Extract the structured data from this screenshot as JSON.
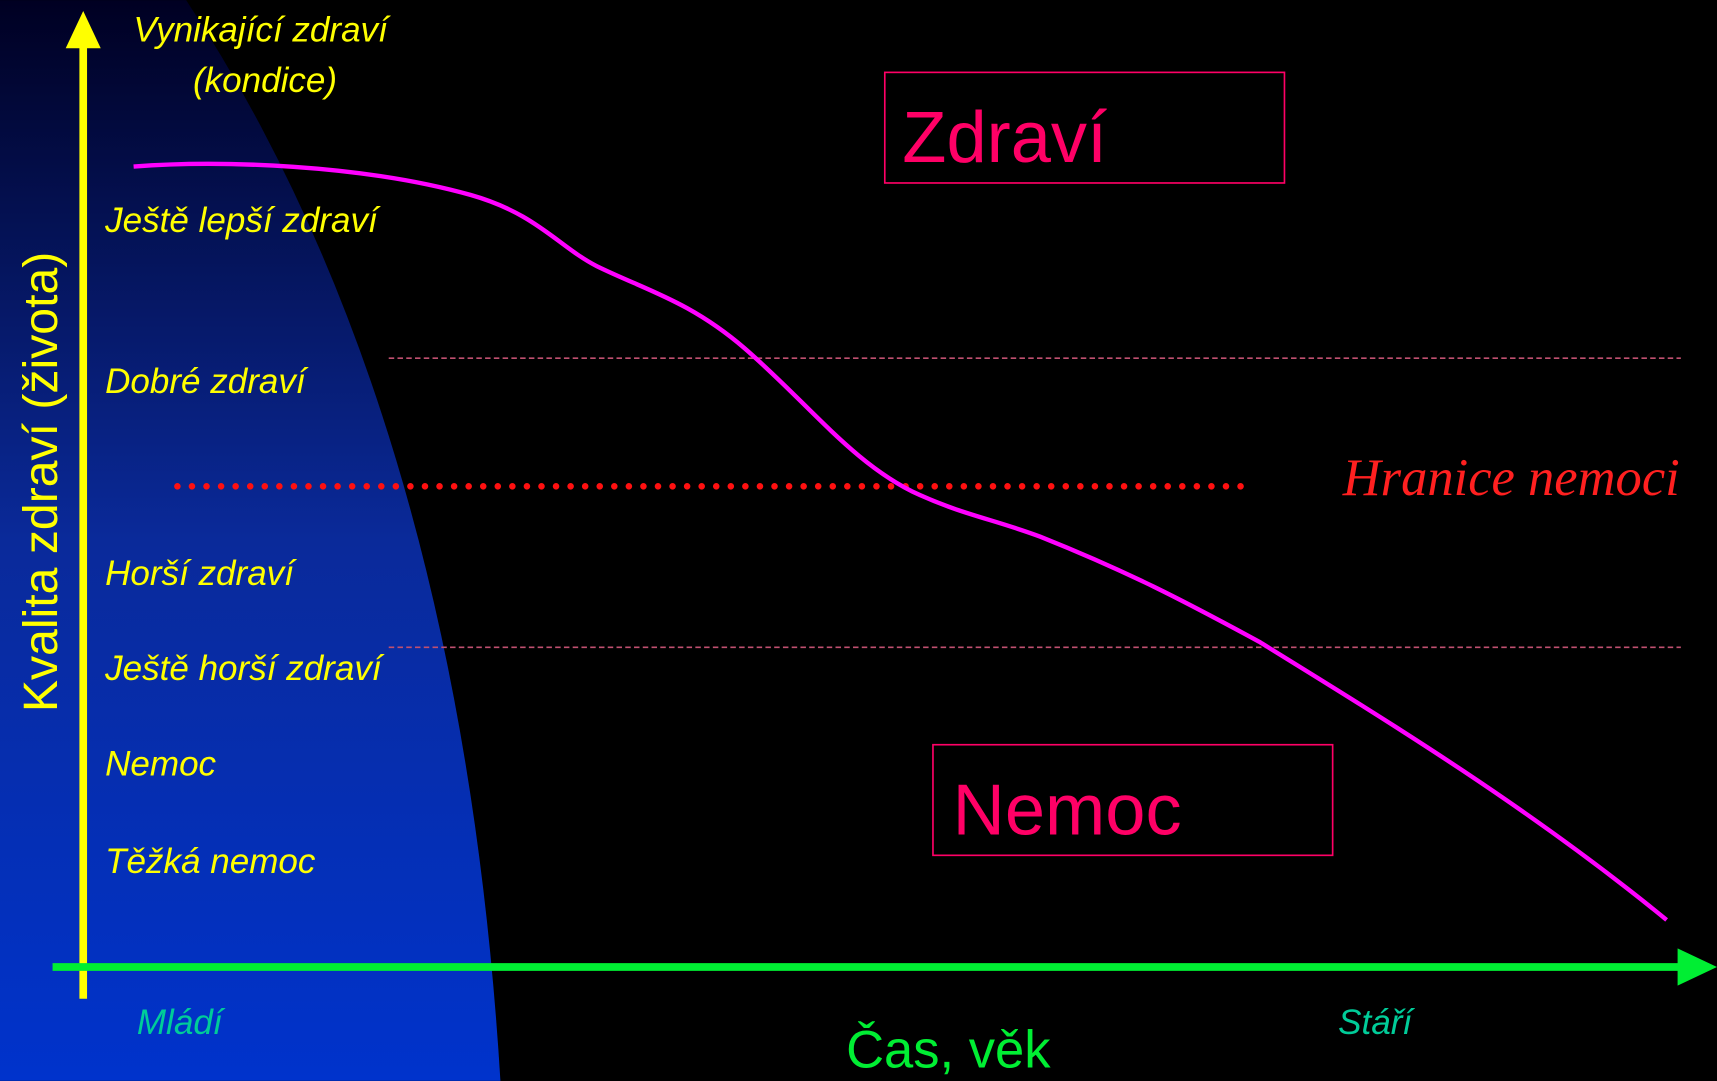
{
  "y_axis_label": "Kvalita zdraví (života)",
  "x_axis_label": "Čas, věk",
  "top_level": [
    "Vynikající zdraví",
    "(kondice)"
  ],
  "levels": [
    "Ještě lepší zdraví",
    "Dobré zdraví",
    "Horší zdraví",
    "Ještě horší zdraví",
    "Nemoc",
    "Těžká nemoc"
  ],
  "threshold": "Hranice nemoci",
  "boxes": [
    "Zdraví",
    "Nemoc"
  ],
  "x_start": "Mládí",
  "x_end": "Stáří"
}
